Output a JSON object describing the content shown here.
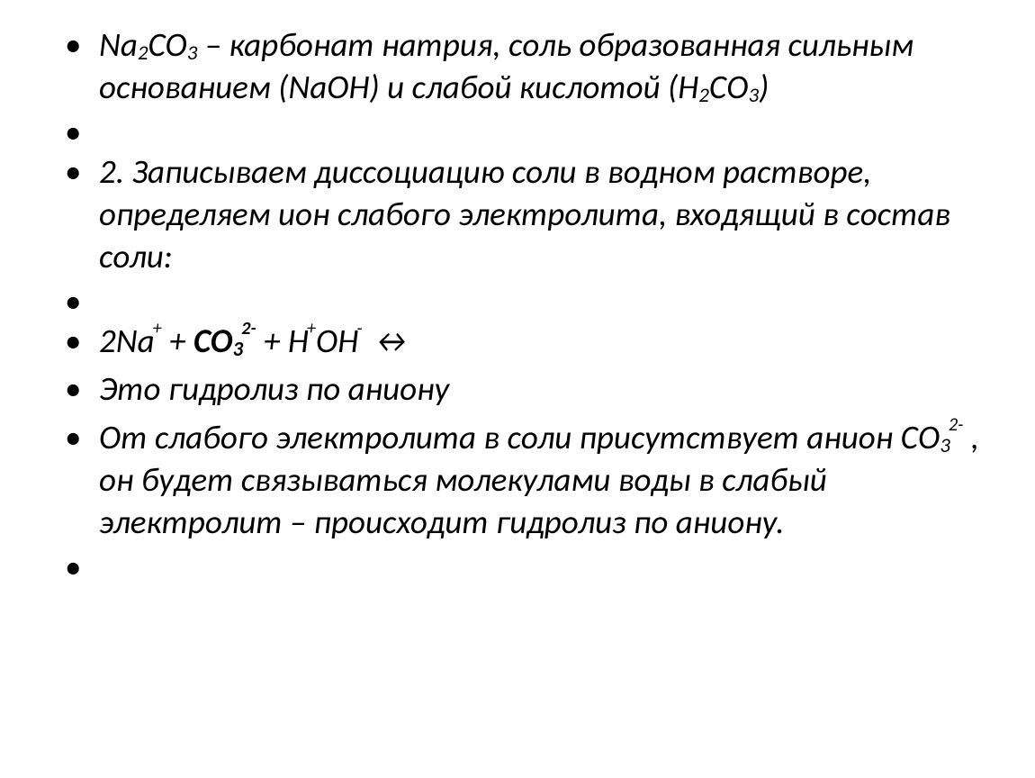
{
  "slide": {
    "font_family": "Calibri",
    "font_size_pt": 28,
    "font_style": "italic",
    "text_color": "#000000",
    "background_color": "#ffffff",
    "items": [
      {
        "runs": [
          {
            "t": "Na"
          },
          {
            "t": "2",
            "sub": true
          },
          {
            "t": "CO"
          },
          {
            "t": "3",
            "sub": true
          },
          {
            "t": " – карбонат натрия, соль образованная сильным основанием (NaOH) и слабой кислотой (Н"
          },
          {
            "t": "2",
            "sub": true
          },
          {
            "t": "СО"
          },
          {
            "t": "3",
            "sub": true
          },
          {
            "t": ")"
          }
        ]
      },
      {
        "empty": true
      },
      {
        "runs": [
          {
            "t": "2. Записываем диссоциацию соли в водном растворе, определяем ион слабого электролита, входящий в состав соли:"
          }
        ]
      },
      {
        "empty": true
      },
      {
        "runs": [
          {
            "t": "2Na"
          },
          {
            "t": "+",
            "sup": true
          },
          {
            "t": " + "
          },
          {
            "t": "CO",
            "bold": true
          },
          {
            "t": "3",
            "sub": true,
            "bold": true
          },
          {
            "t": "2-",
            "sup": true,
            "bold": true
          },
          {
            "t": " + H"
          },
          {
            "t": "+",
            "sup": true
          },
          {
            "t": "OH"
          },
          {
            "t": "-",
            "sup": true
          },
          {
            "t": "  ↔"
          }
        ]
      },
      {
        "runs": [
          {
            "t": "Это гидролиз по аниону"
          }
        ]
      },
      {
        "runs": [
          {
            "t": "От слабого электролита в соли присутствует анион СО"
          },
          {
            "t": "3",
            "sub": true
          },
          {
            "t": "2-",
            "sup": true
          },
          {
            "t": " , он будет связываться молекулами воды в слабый электролит – происходит гидролиз по аниону."
          }
        ]
      },
      {
        "empty": true
      }
    ]
  }
}
